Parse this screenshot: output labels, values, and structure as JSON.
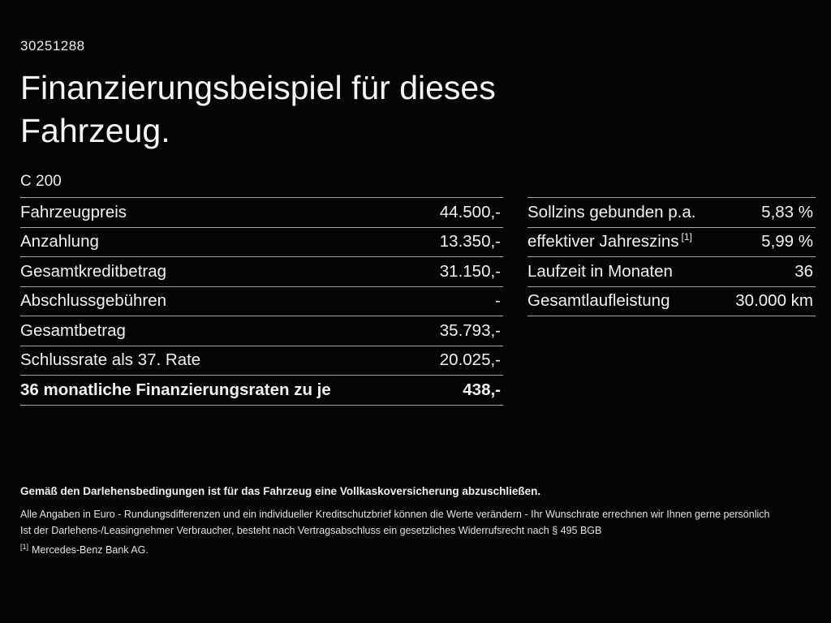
{
  "page": {
    "id_number": "30251288",
    "title": "Finanzierungsbeispiel für dieses Fahrzeug.",
    "model": "C 200"
  },
  "left_table": {
    "rows": [
      {
        "label": "Fahrzeugpreis",
        "value": "44.500,-"
      },
      {
        "label": "Anzahlung",
        "value": "13.350,-"
      },
      {
        "label": "Gesamtkreditbetrag",
        "value": "31.150,-"
      },
      {
        "label": "Abschlussgebühren",
        "value": "-"
      },
      {
        "label": "Gesamtbetrag",
        "value": "35.793,-"
      },
      {
        "label": "Schlussrate als 37. Rate",
        "value": "20.025,-"
      },
      {
        "label": "36 monatliche Finanzierungsraten zu je",
        "value": "438,-"
      }
    ]
  },
  "right_table": {
    "rows": [
      {
        "label": "Sollzins gebunden p.a.",
        "sup": "",
        "value": "5,83 %"
      },
      {
        "label": "effektiver Jahreszins",
        "sup": "[1]",
        "value": "5,99 %"
      },
      {
        "label": "Laufzeit in Monaten",
        "sup": "",
        "value": "36"
      },
      {
        "label": "Gesamtlaufleistung",
        "sup": "",
        "value": "30.000 km"
      }
    ]
  },
  "footer": {
    "bold_note": "Gemäß den Darlehensbedingungen ist für das Fahrzeug eine Vollkaskoversicherung abzuschließen.",
    "line1": "Alle Angaben in Euro - Rundungsdifferenzen und ein individueller Kreditschutzbrief können die Werte verändern - Ihr Wunschrate errechnen wir Ihnen gerne persönlich",
    "line2": "Ist der Darlehens-/Leasingnehmer Verbraucher, besteht nach Vertragsabschluss ein gesetzliches Widerrufsrecht nach § 495 BGB",
    "footnote_marker": "[1]",
    "footnote_text": "Mercedes-Benz Bank AG."
  },
  "colors": {
    "background": "#040404",
    "text": "#f2f2f2",
    "divider": "#a8a8a8"
  }
}
